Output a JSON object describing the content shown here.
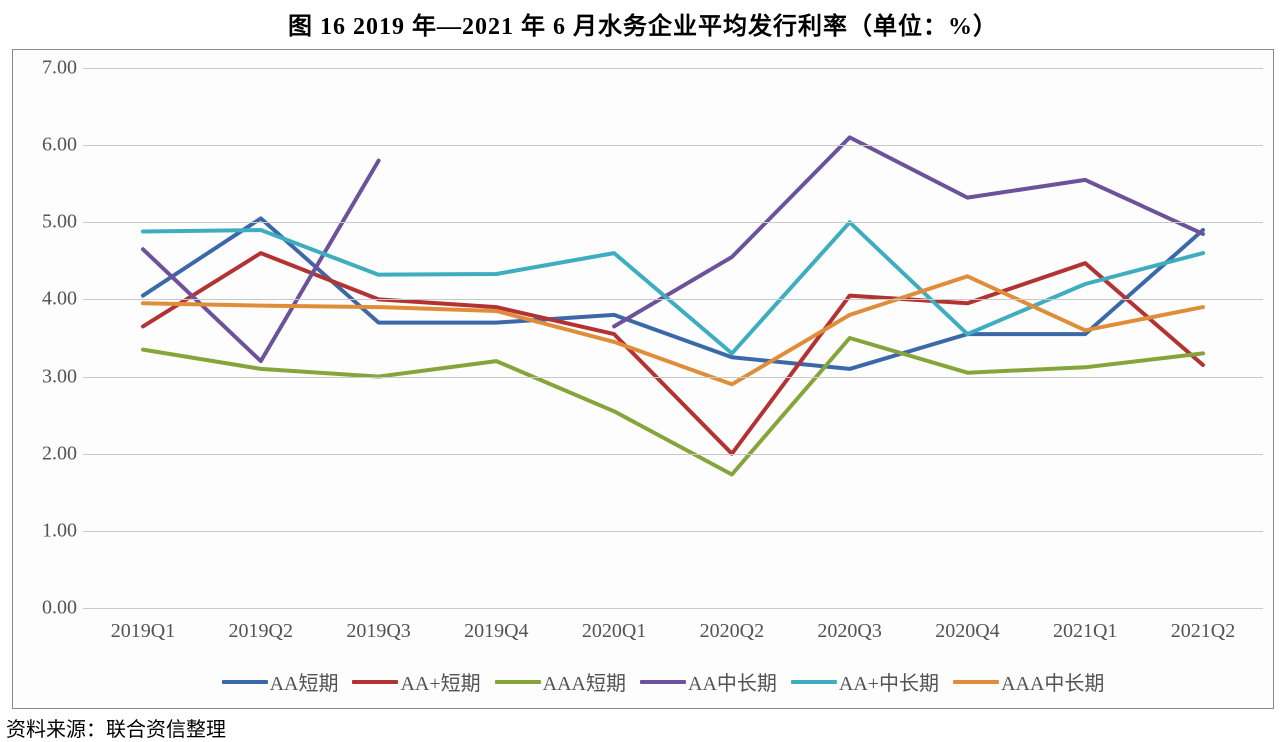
{
  "title": "图 16   2019 年—2021 年 6 月水务企业平均发行利率（单位：%）",
  "source": "资料来源：联合资信整理",
  "chart": {
    "type": "line",
    "background_color": "#fdfdfd",
    "border_color": "#8a8a8a",
    "grid_color": "#c9c9c9",
    "text_color": "#535353",
    "tick_font_family": "Times New Roman",
    "tick_fontsize": 20,
    "title_fontsize": 24,
    "ylim": [
      0,
      7
    ],
    "ytick_step": 1,
    "yticks": [
      "0.00",
      "1.00",
      "2.00",
      "3.00",
      "4.00",
      "5.00",
      "6.00",
      "7.00"
    ],
    "categories": [
      "2019Q1",
      "2019Q2",
      "2019Q3",
      "2019Q4",
      "2020Q1",
      "2020Q2",
      "2020Q3",
      "2020Q4",
      "2021Q1",
      "2021Q2"
    ],
    "line_width": 4,
    "series": [
      {
        "name": "AA短期",
        "color": "#3b68a9",
        "values": [
          4.05,
          5.05,
          3.7,
          3.7,
          3.8,
          3.25,
          3.1,
          3.55,
          3.55,
          4.9
        ]
      },
      {
        "name": "AA+短期",
        "color": "#b23331",
        "values": [
          3.65,
          4.6,
          4.0,
          3.9,
          3.55,
          2.0,
          4.05,
          3.95,
          4.47,
          3.15
        ]
      },
      {
        "name": "AAA短期",
        "color": "#85a53a",
        "values": [
          3.35,
          3.1,
          3.0,
          3.2,
          2.55,
          1.73,
          3.5,
          3.05,
          3.12,
          3.3
        ]
      },
      {
        "name": "AA中长期",
        "color": "#6b529a",
        "values": [
          4.65,
          3.2,
          5.8,
          null,
          3.65,
          4.55,
          6.1,
          5.32,
          5.55,
          4.85
        ]
      },
      {
        "name": "AA+中长期",
        "color": "#3eadc0",
        "values": [
          4.88,
          4.9,
          4.32,
          4.33,
          4.6,
          3.3,
          5.0,
          3.55,
          4.2,
          4.6
        ]
      },
      {
        "name": "AAA中长期",
        "color": "#e08d3a",
        "values": [
          3.95,
          3.92,
          3.9,
          3.85,
          3.45,
          2.9,
          3.8,
          4.3,
          3.6,
          3.9
        ]
      }
    ]
  }
}
